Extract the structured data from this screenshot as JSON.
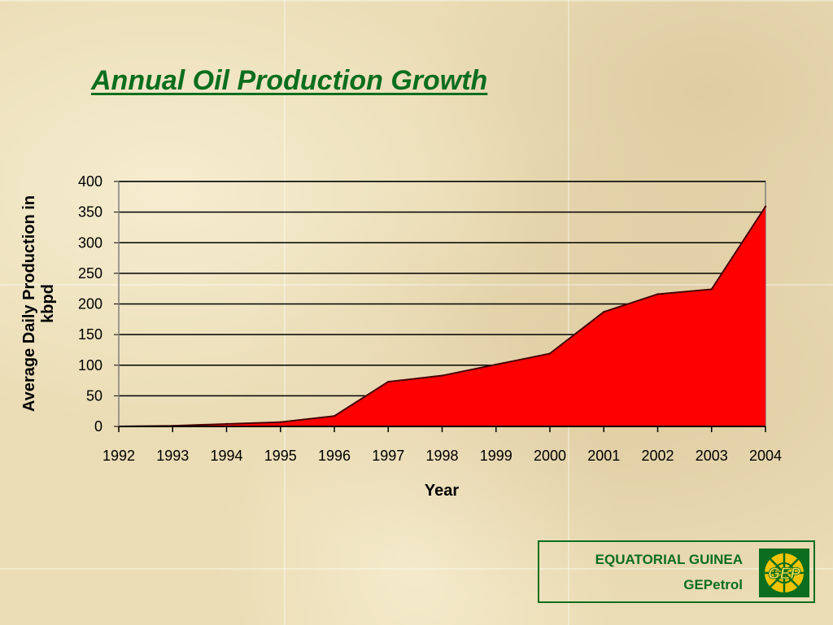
{
  "slide": {
    "title": "Annual Oil Production Growth"
  },
  "chart_data": {
    "type": "area",
    "title": "",
    "xlabel": "Year",
    "ylabel": "Average Daily Production in kbpd",
    "ylabel_lines": [
      "Average Daily Production in",
      "kbpd"
    ],
    "categories": [
      "1992",
      "1993",
      "1994",
      "1995",
      "1996",
      "1997",
      "1998",
      "1999",
      "2000",
      "2001",
      "2002",
      "2003",
      "2004"
    ],
    "values": [
      0,
      1,
      4,
      7,
      17,
      73,
      83,
      101,
      119,
      187,
      216,
      224,
      359
    ],
    "ylim": [
      0,
      400
    ],
    "yticks": [
      0,
      50,
      100,
      150,
      200,
      250,
      300,
      350,
      400
    ],
    "grid": true,
    "legend": "none",
    "area_color": "#ff0000",
    "line_color": "#4a0000"
  },
  "branding": {
    "country": "EQUATORIAL GUINEA",
    "company": "GEPetrol",
    "logo_text": "GEP",
    "accent": "#0b6e1e"
  }
}
